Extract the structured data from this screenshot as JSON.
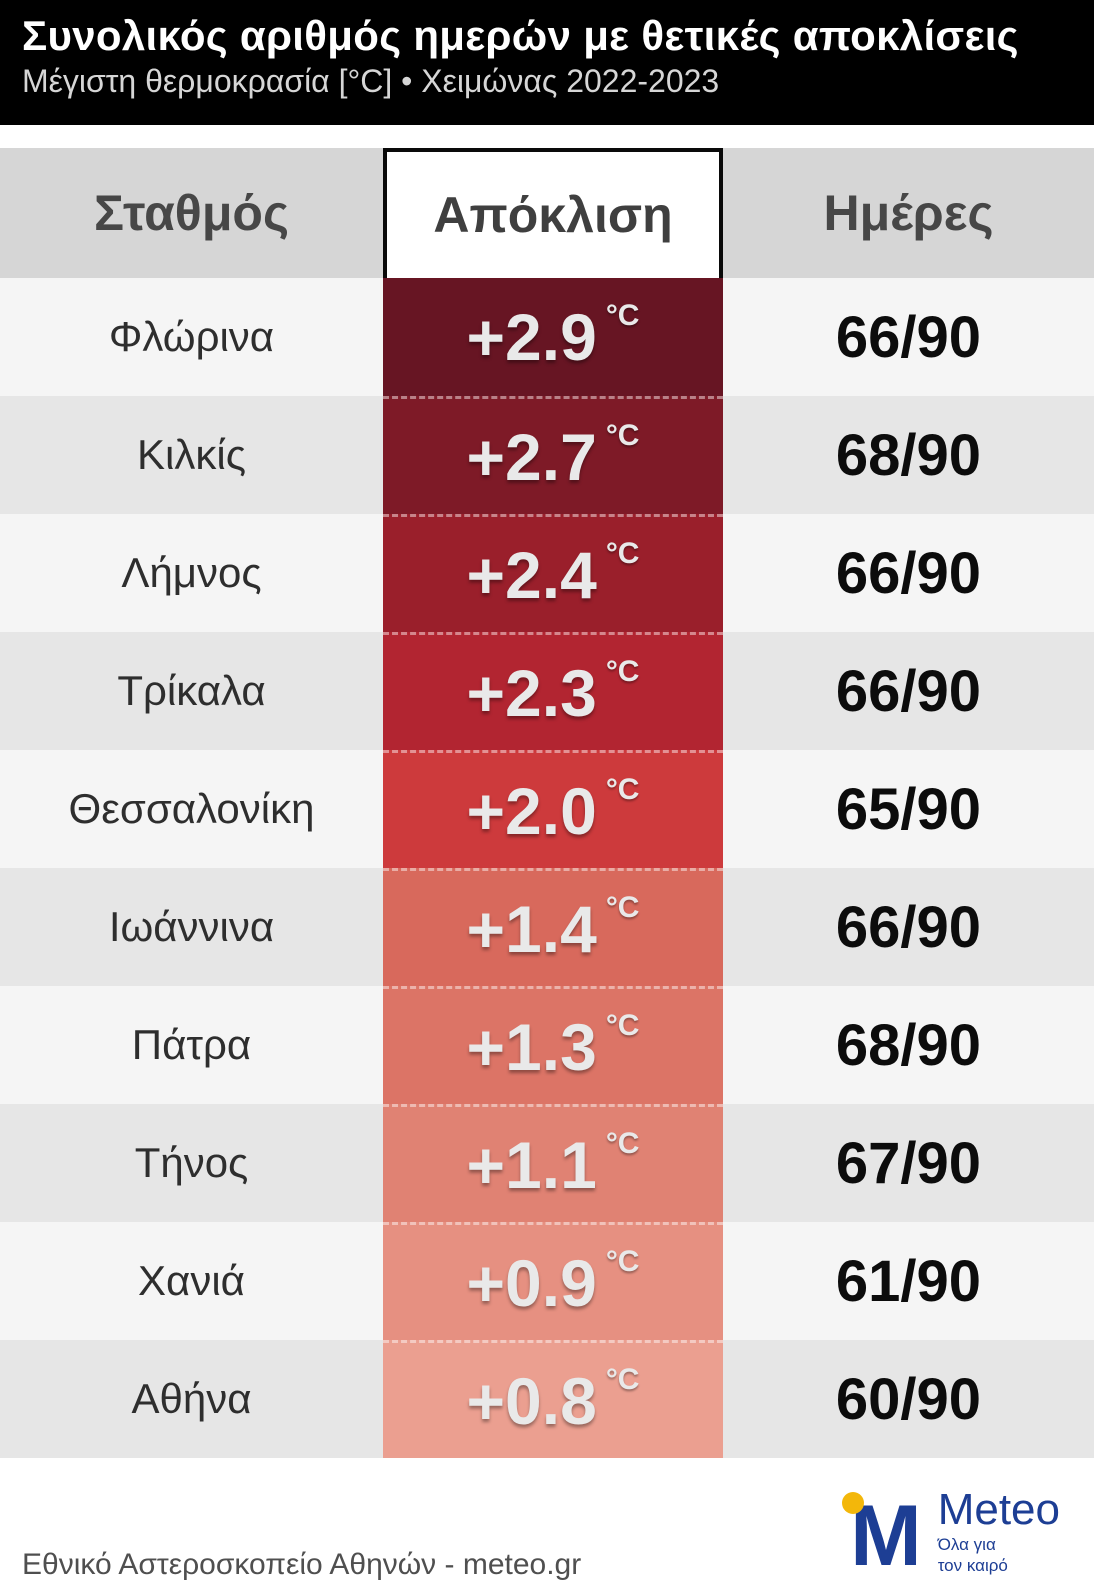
{
  "header": {
    "title": "Συνολικός αριθμός ημερών με θετικές αποκλίσεις",
    "subtitle": "Μέγιστη θερμοκρασία [°C] • Χειμώνας 2022-2023"
  },
  "table": {
    "columns": [
      "Σταθμός",
      "Απόκλιση",
      "Ημέρες"
    ],
    "unit_label": "°C",
    "rows": [
      {
        "station": "Φλώρινα",
        "deviation": "+2.9",
        "days": "66/90",
        "color": "#671523"
      },
      {
        "station": "Κιλκίς",
        "deviation": "+2.7",
        "days": "68/90",
        "color": "#7e1a27"
      },
      {
        "station": "Λήμνος",
        "deviation": "+2.4",
        "days": "66/90",
        "color": "#9a1f2b"
      },
      {
        "station": "Τρίκαλα",
        "deviation": "+2.3",
        "days": "66/90",
        "color": "#b22531"
      },
      {
        "station": "Θεσσαλονίκη",
        "deviation": "+2.0",
        "days": "65/90",
        "color": "#cd3a3c"
      },
      {
        "station": "Ιωάννινα",
        "deviation": "+1.4",
        "days": "66/90",
        "color": "#d8695c"
      },
      {
        "station": "Πάτρα",
        "deviation": "+1.3",
        "days": "68/90",
        "color": "#dc7466"
      },
      {
        "station": "Τήνος",
        "deviation": "+1.1",
        "days": "67/90",
        "color": "#e08273"
      },
      {
        "station": "Χανιά",
        "deviation": "+0.9",
        "days": "61/90",
        "color": "#e69081"
      },
      {
        "station": "Αθήνα",
        "deviation": "+0.8",
        "days": "60/90",
        "color": "#eb9f90"
      }
    ]
  },
  "footer": {
    "credit": "Εθνικό Αστεροσκοπείο Αθηνών - meteo.gr",
    "logo": {
      "monogram": "M",
      "name": "Meteo",
      "tagline_line1": "Όλα για",
      "tagline_line2": "τον καιρό"
    }
  },
  "chart_data": {
    "type": "table",
    "title": "Συνολικός αριθμός ημερών με θετικές αποκλίσεις",
    "subtitle": "Μέγιστη θερμοκρασία [°C] • Χειμώνας 2022-2023",
    "columns": [
      "Σταθμός",
      "Απόκλιση",
      "Ημέρες"
    ],
    "stations": [
      "Φλώρινα",
      "Κιλκίς",
      "Λήμνος",
      "Τρίκαλα",
      "Θεσσαλονίκη",
      "Ιωάννινα",
      "Πάτρα",
      "Τήνος",
      "Χανιά",
      "Αθήνα"
    ],
    "deviation_c": [
      2.9,
      2.7,
      2.4,
      2.3,
      2.0,
      1.4,
      1.3,
      1.1,
      0.9,
      0.8
    ],
    "days_positive": [
      66,
      68,
      66,
      66,
      65,
      66,
      68,
      67,
      61,
      60
    ],
    "days_total": 90,
    "color_scale": [
      "#671523",
      "#7e1a27",
      "#9a1f2b",
      "#b22531",
      "#cd3a3c",
      "#d8695c",
      "#dc7466",
      "#e08273",
      "#e69081",
      "#eb9f90"
    ],
    "legend_position": "none",
    "grid": false
  }
}
